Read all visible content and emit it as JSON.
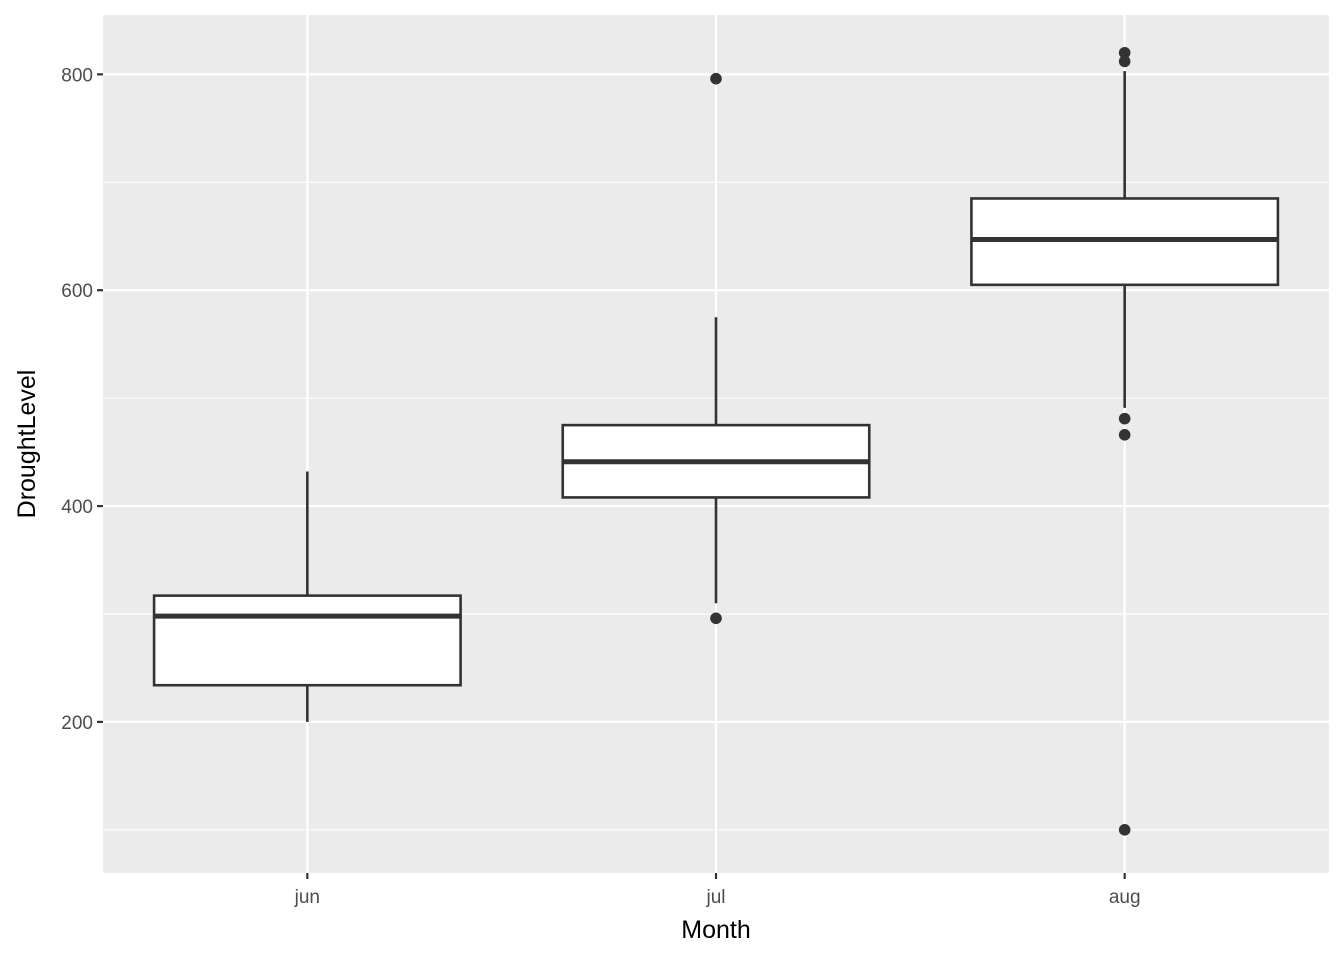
{
  "chart_data": {
    "type": "boxplot",
    "title": "",
    "xlabel": "Month",
    "ylabel": "DroughtLevel",
    "categories": [
      "jun",
      "jul",
      "aug"
    ],
    "ylim": [
      60,
      855
    ],
    "y_ticks": [
      200,
      400,
      600,
      800
    ],
    "y_tick_labels": [
      "200",
      "400",
      "600",
      "800"
    ],
    "y_minor_ticks": [
      100,
      300,
      500,
      700
    ],
    "grid": true,
    "legend": "none",
    "boxes": [
      {
        "category": "jun",
        "whisker_low": 200,
        "q1": 234,
        "median": 298,
        "q3": 317,
        "whisker_high": 432,
        "outliers": []
      },
      {
        "category": "jul",
        "whisker_low": 310,
        "q1": 408,
        "median": 441,
        "q3": 475,
        "whisker_high": 575,
        "outliers": [
          296,
          796
        ]
      },
      {
        "category": "aug",
        "whisker_low": 491,
        "q1": 605,
        "median": 647,
        "q3": 685,
        "whisker_high": 803,
        "outliers": [
          820,
          812,
          481,
          466,
          100
        ]
      }
    ],
    "colors": {
      "panel": "#ebebeb",
      "grid": "#ffffff",
      "box_fill": "#ffffff",
      "box_line": "#333333",
      "point": "#333333"
    }
  }
}
